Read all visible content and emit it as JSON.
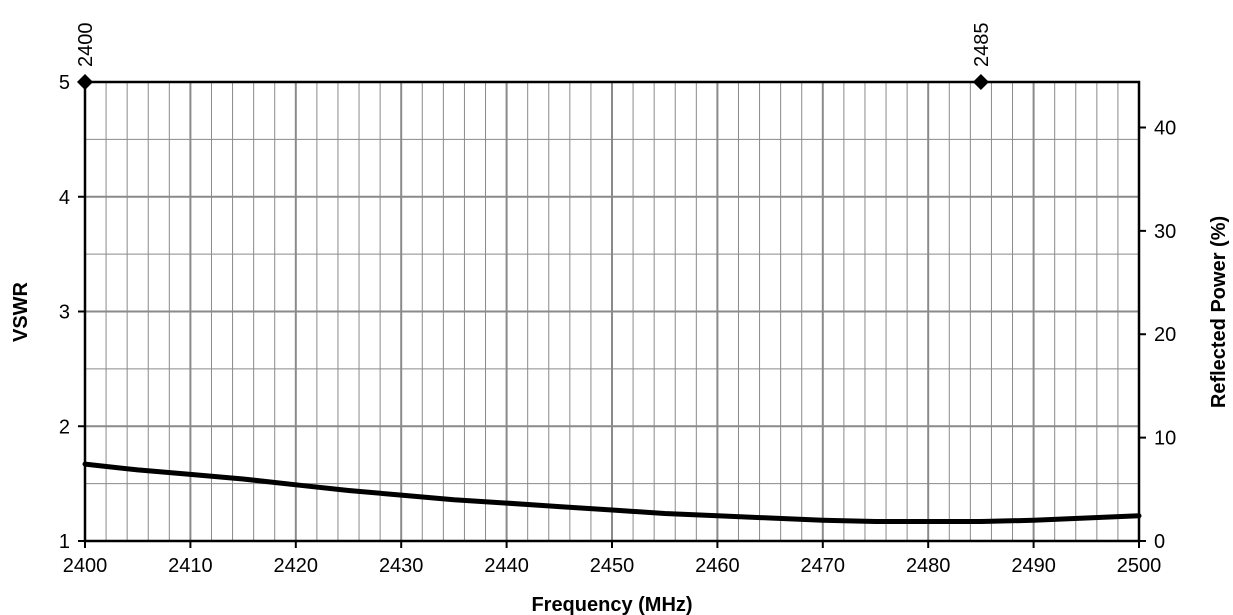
{
  "chart_data": {
    "type": "line",
    "title": "",
    "xlabel": "Frequency (MHz)",
    "ylabel": "VSWR",
    "y2label": "Reflected Power (%)",
    "xlim": [
      2400,
      2500
    ],
    "ylim": [
      1,
      5
    ],
    "y2lim": [
      0,
      44.4
    ],
    "x_ticks": [
      "2400",
      "2410",
      "2420",
      "2430",
      "2440",
      "2450",
      "2460",
      "2470",
      "2480",
      "2490",
      "2500"
    ],
    "y_ticks": [
      "1",
      "2",
      "3",
      "4",
      "5"
    ],
    "y2_ticks": [
      "0",
      "10",
      "20",
      "30",
      "40"
    ],
    "x_minor_step": 2,
    "y_minor_step": 0.5,
    "grid": true,
    "legend": "none",
    "markers": [
      {
        "label": "2400",
        "x": 2400,
        "y": 5
      },
      {
        "label": "2485",
        "x": 2485,
        "y": 5
      }
    ],
    "series": [
      {
        "x": [
          2400,
          2405,
          2410,
          2415,
          2420,
          2425,
          2430,
          2435,
          2440,
          2445,
          2450,
          2455,
          2460,
          2465,
          2470,
          2475,
          2480,
          2485,
          2490,
          2495,
          2500
        ],
        "values": [
          1.67,
          1.62,
          1.58,
          1.54,
          1.49,
          1.44,
          1.4,
          1.36,
          1.33,
          1.3,
          1.27,
          1.24,
          1.22,
          1.2,
          1.18,
          1.17,
          1.17,
          1.17,
          1.18,
          1.2,
          1.22
        ],
        "color": "#000000"
      }
    ],
    "colors": {
      "grid": "#8a8a8a",
      "frame": "#000000",
      "line": "#000000"
    }
  }
}
